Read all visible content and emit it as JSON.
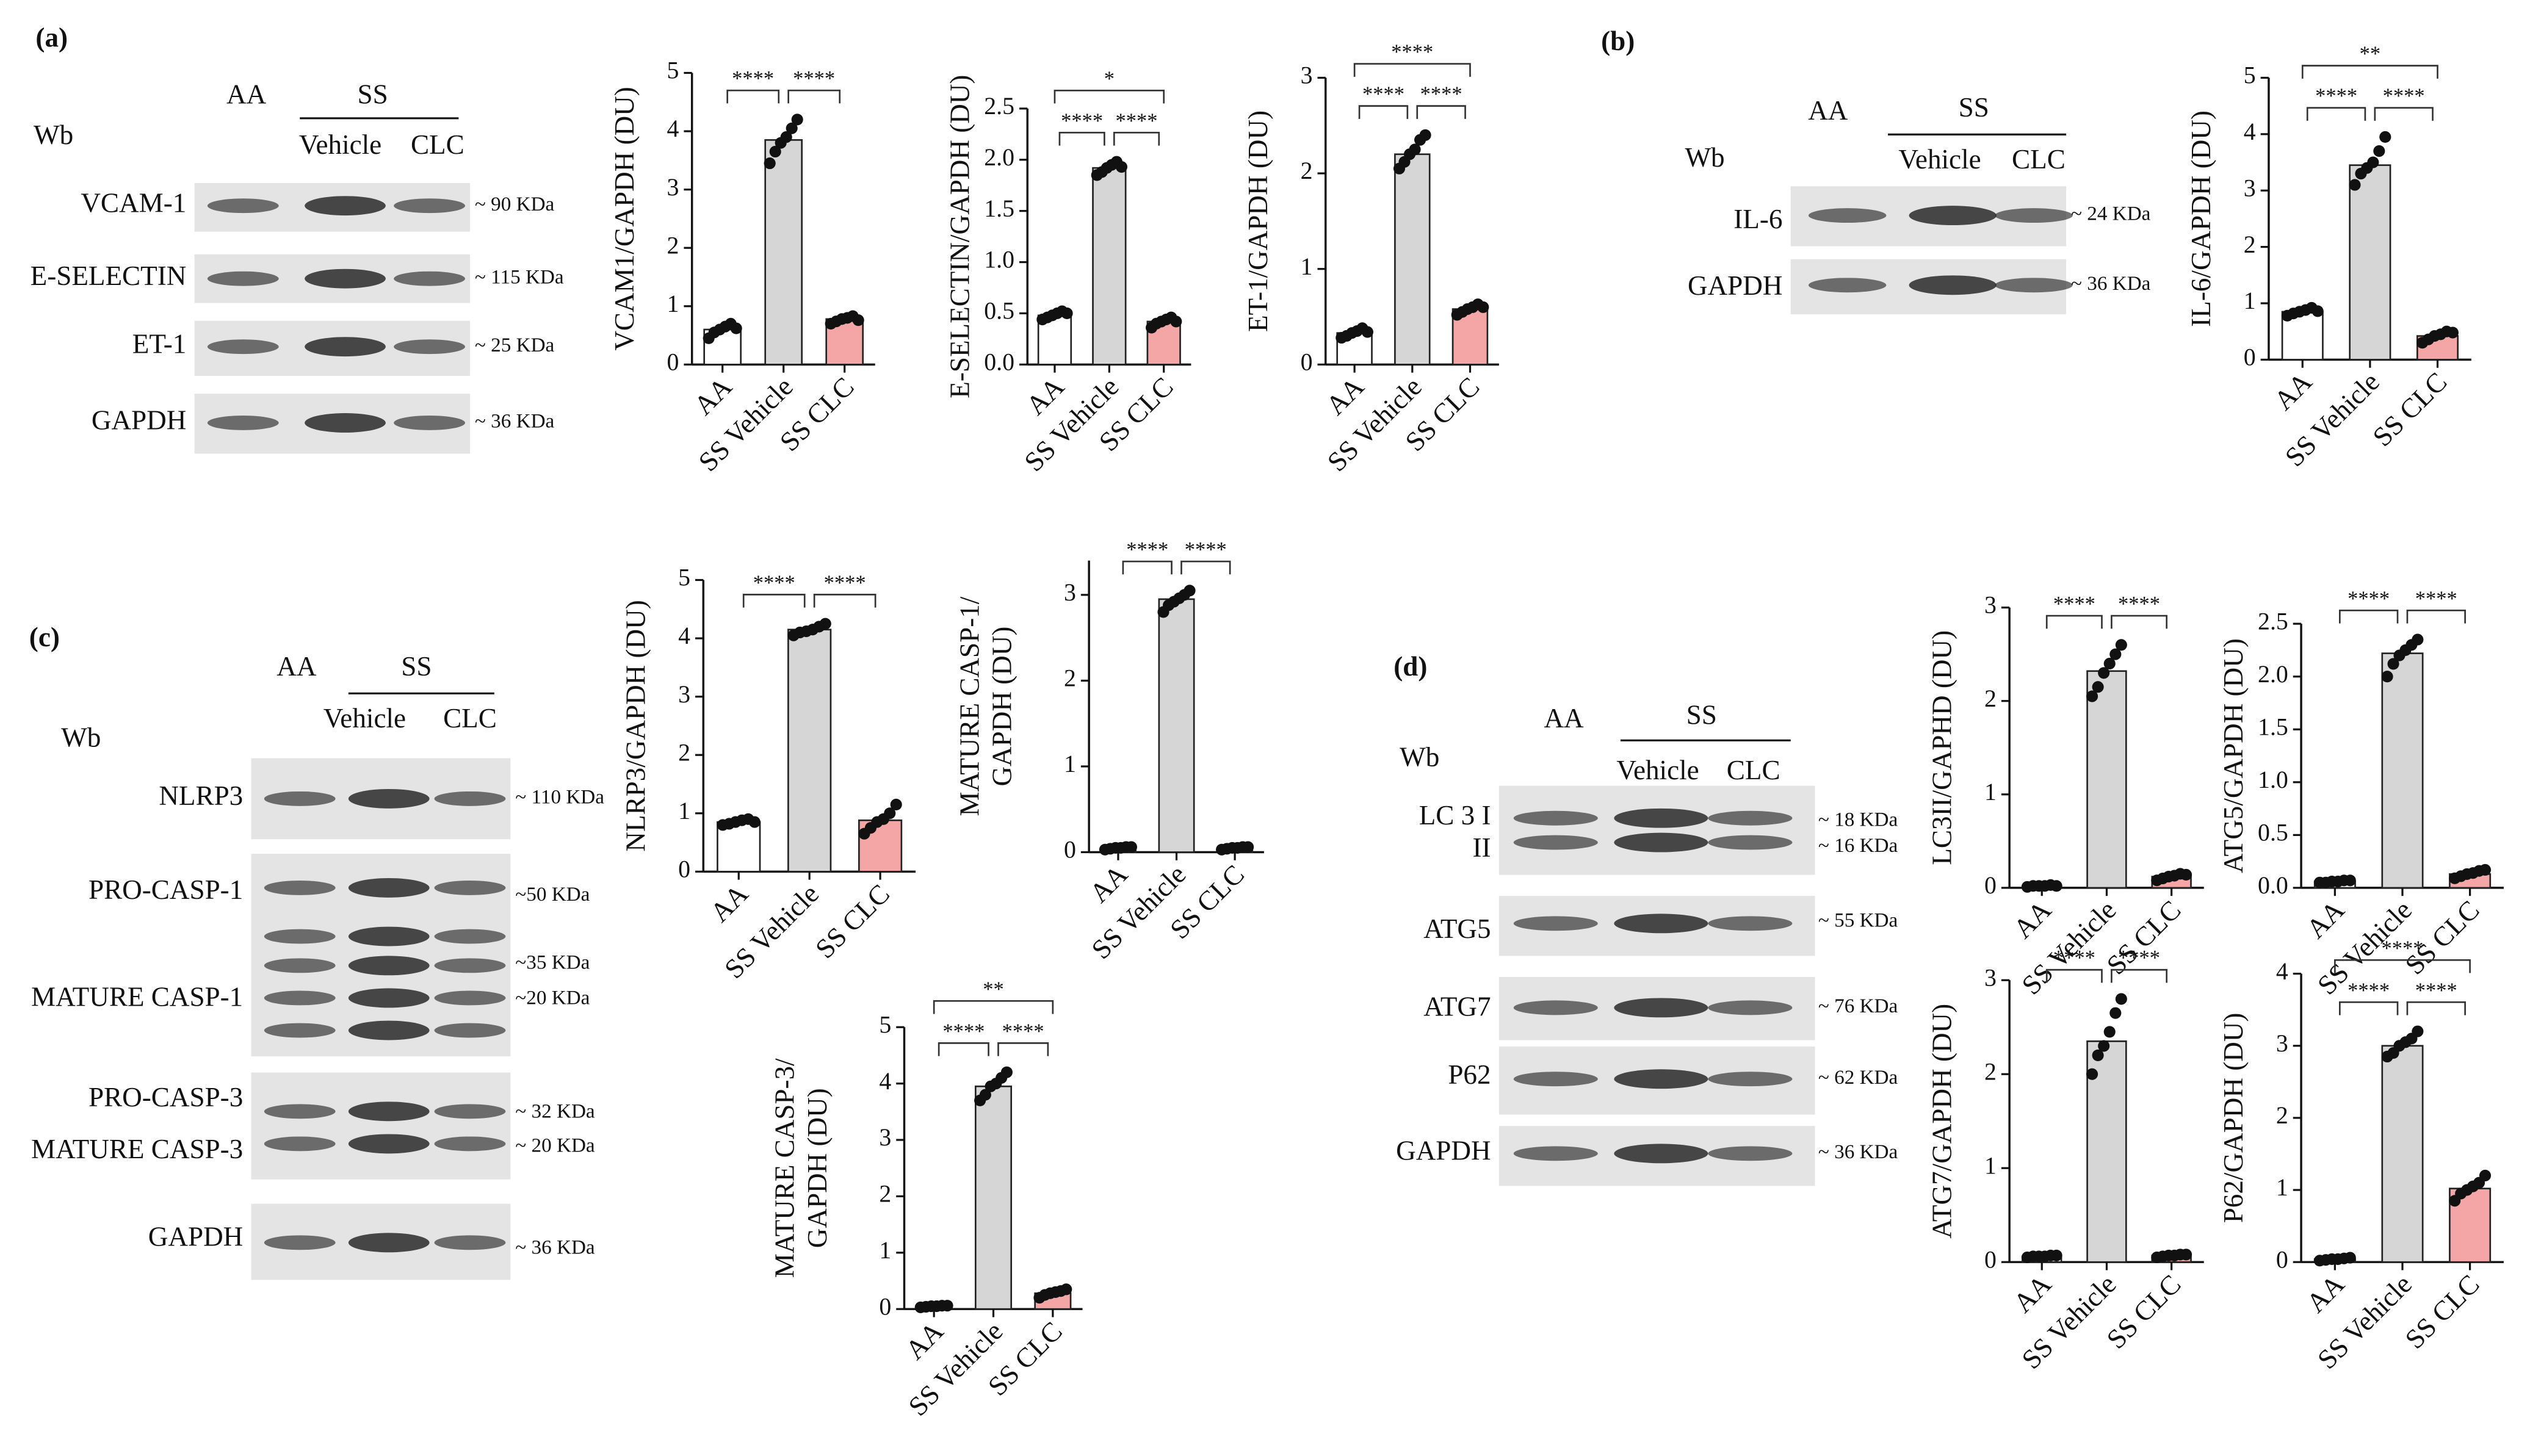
{
  "panels": [
    "(a)",
    "(b)",
    "(c)",
    "(d)"
  ],
  "blots": [
    {
      "wb": "Wb",
      "groups": [
        "AA",
        "SS"
      ],
      "subgroups": [
        "Vehicle",
        "CLC"
      ],
      "labels": [
        "VCAM-1",
        "E-SELECTIN",
        "ET-1",
        "GAPDH"
      ],
      "kda": [
        "~ 90 KDa",
        "~ 115 KDa",
        "~ 25 KDa",
        "~ 36 KDa"
      ]
    },
    {
      "wb": "Wb",
      "groups": [
        "AA",
        "SS"
      ],
      "subgroups": [
        "Vehicle",
        "CLC"
      ],
      "labels": [
        "IL-6",
        "GAPDH"
      ],
      "kda": [
        "~ 24 KDa",
        "~ 36 KDa"
      ]
    },
    {
      "wb": "Wb",
      "groups": [
        "AA",
        "SS"
      ],
      "subgroups": [
        "Vehicle",
        "CLC"
      ],
      "labels": [
        "NLRP3",
        "PRO-CASP-1",
        "MATURE CASP-1",
        "PRO-CASP-3",
        "MATURE CASP-3",
        "GAPDH"
      ],
      "kda": [
        "~ 110 KDa",
        "~50 KDa",
        "~35 KDa",
        "~20 KDa",
        "~ 32 KDa",
        "~ 20 KDa",
        "~ 36 KDa"
      ]
    },
    {
      "wb": "Wb",
      "groups": [
        "AA",
        "SS"
      ],
      "subgroups": [
        "Vehicle",
        "CLC"
      ],
      "labels": [
        "LC 3 I",
        "II",
        "ATG5",
        "ATG7",
        "P62",
        "GAPDH"
      ],
      "kda": [
        "~ 18 KDa",
        "~ 16 KDa",
        "~ 55 KDa",
        "~ 76 KDa",
        "~ 62 KDa",
        "~ 36 KDa"
      ]
    }
  ],
  "chart_data": [
    {
      "type": "bar",
      "ylabel": "VCAM1/GAPDH (DU)",
      "categories": [
        "AA",
        "SS Vehicle",
        "SS CLC"
      ],
      "values": [
        0.6,
        3.85,
        0.78
      ],
      "colors": [
        "#ffffff",
        "#d6d6d6",
        "#f4a6a6"
      ],
      "points": [
        [
          0.45,
          0.55,
          0.6,
          0.65,
          0.7,
          0.62
        ],
        [
          3.45,
          3.65,
          3.8,
          3.9,
          4.05,
          4.2
        ],
        [
          0.7,
          0.74,
          0.78,
          0.8,
          0.83,
          0.76
        ]
      ],
      "ylim": [
        0,
        5
      ],
      "yticks": [
        0,
        1,
        2,
        3,
        4,
        5
      ],
      "significance": [
        {
          "pair": [
            0,
            1
          ],
          "label": "****"
        },
        {
          "pair": [
            1,
            2
          ],
          "label": "****"
        }
      ]
    },
    {
      "type": "bar",
      "ylabel": "E-SELECTIN/GAPDH (DU)",
      "categories": [
        "AA",
        "SS Vehicle",
        "SS CLC"
      ],
      "values": [
        0.48,
        1.92,
        0.42
      ],
      "colors": [
        "#ffffff",
        "#d6d6d6",
        "#f4a6a6"
      ],
      "points": [
        [
          0.44,
          0.46,
          0.48,
          0.5,
          0.52,
          0.5
        ],
        [
          1.85,
          1.88,
          1.92,
          1.95,
          1.98,
          1.93
        ],
        [
          0.36,
          0.4,
          0.42,
          0.44,
          0.46,
          0.42
        ]
      ],
      "ylim": [
        0,
        2.5
      ],
      "yticks": [
        {
          "value": 0,
          "label": "0.0"
        },
        0.5,
        {
          "value": 1,
          "label": "1.0"
        },
        1.5,
        {
          "value": 2,
          "label": "2.0"
        },
        2.5
      ],
      "significance": [
        {
          "pair": [
            0,
            1
          ],
          "label": "****"
        },
        {
          "pair": [
            1,
            2
          ],
          "label": "****"
        },
        {
          "pair": [
            0,
            2
          ],
          "label": "*"
        }
      ]
    },
    {
      "type": "bar",
      "ylabel": "ET-1/GAPDH (DU)",
      "categories": [
        "AA",
        "SS Vehicle",
        "SS CLC"
      ],
      "values": [
        0.33,
        2.2,
        0.58
      ],
      "colors": [
        "#ffffff",
        "#d6d6d6",
        "#f4a6a6"
      ],
      "points": [
        [
          0.28,
          0.3,
          0.33,
          0.35,
          0.38,
          0.34
        ],
        [
          2.05,
          2.12,
          2.2,
          2.25,
          2.35,
          2.4
        ],
        [
          0.52,
          0.55,
          0.58,
          0.6,
          0.63,
          0.6
        ]
      ],
      "ylim": [
        0,
        3
      ],
      "yticks": [
        0,
        1,
        2,
        3
      ],
      "significance": [
        {
          "pair": [
            0,
            1
          ],
          "label": "****"
        },
        {
          "pair": [
            1,
            2
          ],
          "label": "****"
        },
        {
          "pair": [
            0,
            2
          ],
          "label": "****"
        }
      ]
    },
    {
      "type": "bar",
      "ylabel": "IL-6/GAPDH  (DU)",
      "categories": [
        "AA",
        "SS Vehicle",
        "SS CLC"
      ],
      "values": [
        0.85,
        3.45,
        0.42
      ],
      "colors": [
        "#ffffff",
        "#d6d6d6",
        "#f4a6a6"
      ],
      "points": [
        [
          0.78,
          0.82,
          0.85,
          0.88,
          0.92,
          0.86
        ],
        [
          3.1,
          3.3,
          3.4,
          3.5,
          3.7,
          3.95
        ],
        [
          0.3,
          0.36,
          0.42,
          0.45,
          0.5,
          0.48
        ]
      ],
      "ylim": [
        0,
        5
      ],
      "yticks": [
        0,
        1,
        2,
        3,
        4,
        5
      ],
      "significance": [
        {
          "pair": [
            0,
            1
          ],
          "label": "****"
        },
        {
          "pair": [
            1,
            2
          ],
          "label": "****"
        },
        {
          "pair": [
            0,
            2
          ],
          "label": "**"
        }
      ]
    },
    {
      "type": "bar",
      "ylabel": "NLRP3/GAPDH (DU)",
      "categories": [
        "AA",
        "SS Vehicle",
        "SS CLC"
      ],
      "values": [
        0.85,
        4.15,
        0.88
      ],
      "colors": [
        "#ffffff",
        "#d6d6d6",
        "#f4a6a6"
      ],
      "points": [
        [
          0.8,
          0.82,
          0.85,
          0.88,
          0.9,
          0.85
        ],
        [
          4.05,
          4.1,
          4.12,
          4.15,
          4.2,
          4.25
        ],
        [
          0.65,
          0.75,
          0.85,
          0.9,
          1.0,
          1.15
        ]
      ],
      "ylim": [
        0,
        5
      ],
      "yticks": [
        0,
        1,
        2,
        3,
        4,
        5
      ],
      "significance": [
        {
          "pair": [
            0,
            1
          ],
          "label": "****"
        },
        {
          "pair": [
            1,
            2
          ],
          "label": "****"
        }
      ]
    },
    {
      "type": "bar",
      "ylabel": [
        "MATURE CASP-1/",
        "GAPDH  (DU)"
      ],
      "categories": [
        "AA",
        "SS Vehicle",
        "SS CLC"
      ],
      "values": [
        0.05,
        2.95,
        0.05
      ],
      "colors": [
        "#ffffff",
        "#d6d6d6",
        "#f4a6a6"
      ],
      "points": [
        [
          0.03,
          0.04,
          0.05,
          0.05,
          0.06,
          0.06
        ],
        [
          2.8,
          2.88,
          2.92,
          2.96,
          3.0,
          3.05
        ],
        [
          0.03,
          0.04,
          0.05,
          0.05,
          0.06,
          0.06
        ]
      ],
      "ylim": [
        0,
        3.4
      ],
      "yticks": [
        0,
        1,
        2,
        3
      ],
      "significance": [
        {
          "pair": [
            0,
            1
          ],
          "label": "****"
        },
        {
          "pair": [
            1,
            2
          ],
          "label": "****"
        }
      ]
    },
    {
      "type": "bar",
      "ylabel": [
        "MATURE CASP-3/",
        "GAPDH (DU)"
      ],
      "categories": [
        "AA",
        "SS Vehicle",
        "SS CLC"
      ],
      "values": [
        0.05,
        3.95,
        0.28
      ],
      "colors": [
        "#ffffff",
        "#d6d6d6",
        "#f4a6a6"
      ],
      "points": [
        [
          0.03,
          0.04,
          0.05,
          0.05,
          0.06,
          0.06
        ],
        [
          3.7,
          3.8,
          3.95,
          4.0,
          4.1,
          4.2
        ],
        [
          0.2,
          0.25,
          0.28,
          0.3,
          0.32,
          0.35
        ]
      ],
      "ylim": [
        0,
        5
      ],
      "yticks": [
        0,
        1,
        2,
        3,
        4,
        5
      ],
      "significance": [
        {
          "pair": [
            0,
            1
          ],
          "label": "****"
        },
        {
          "pair": [
            1,
            2
          ],
          "label": "****"
        },
        {
          "pair": [
            0,
            2
          ],
          "label": "**"
        }
      ]
    },
    {
      "type": "bar",
      "ylabel": "LC3II/GAPHD (DU)",
      "categories": [
        "AA",
        "SS Vehicle",
        "SS CLC"
      ],
      "values": [
        0.02,
        2.32,
        0.12
      ],
      "colors": [
        "#ffffff",
        "#d6d6d6",
        "#f4a6a6"
      ],
      "points": [
        [
          0.01,
          0.02,
          0.02,
          0.02,
          0.03,
          0.02
        ],
        [
          2.05,
          2.15,
          2.3,
          2.4,
          2.5,
          2.6
        ],
        [
          0.08,
          0.1,
          0.12,
          0.13,
          0.15,
          0.14
        ]
      ],
      "ylim": [
        0,
        3
      ],
      "yticks": [
        0,
        1,
        2,
        3
      ],
      "significance": [
        {
          "pair": [
            0,
            1
          ],
          "label": "****"
        },
        {
          "pair": [
            1,
            2
          ],
          "label": "****"
        }
      ]
    },
    {
      "type": "bar",
      "ylabel": "ATG5/GAPDH (DU)",
      "categories": [
        "AA",
        "SS Vehicle",
        "SS CLC"
      ],
      "values": [
        0.06,
        2.22,
        0.13
      ],
      "colors": [
        "#ffffff",
        "#d6d6d6",
        "#f4a6a6"
      ],
      "points": [
        [
          0.05,
          0.05,
          0.06,
          0.06,
          0.07,
          0.07
        ],
        [
          2.0,
          2.12,
          2.2,
          2.25,
          2.3,
          2.35
        ],
        [
          0.09,
          0.11,
          0.13,
          0.14,
          0.16,
          0.17
        ]
      ],
      "ylim": [
        0,
        2.5
      ],
      "yticks": [
        {
          "value": 0,
          "label": "0.0"
        },
        0.5,
        {
          "value": 1,
          "label": "1.0"
        },
        1.5,
        {
          "value": 2,
          "label": "2.0"
        },
        2.5
      ],
      "significance": [
        {
          "pair": [
            0,
            1
          ],
          "label": "****"
        },
        {
          "pair": [
            1,
            2
          ],
          "label": "****"
        }
      ]
    },
    {
      "type": "bar",
      "ylabel": "ATG7/GAPDH (DU)",
      "categories": [
        "AA",
        "SS Vehicle",
        "SS CLC"
      ],
      "values": [
        0.06,
        2.35,
        0.07
      ],
      "colors": [
        "#ffffff",
        "#d6d6d6",
        "#f4a6a6"
      ],
      "points": [
        [
          0.05,
          0.06,
          0.06,
          0.06,
          0.07,
          0.07
        ],
        [
          2.0,
          2.2,
          2.3,
          2.45,
          2.65,
          2.8
        ],
        [
          0.05,
          0.06,
          0.07,
          0.07,
          0.08,
          0.08
        ]
      ],
      "ylim": [
        0,
        3
      ],
      "yticks": [
        0,
        1,
        2,
        3
      ],
      "significance": [
        {
          "pair": [
            0,
            1
          ],
          "label": "****"
        },
        {
          "pair": [
            1,
            2
          ],
          "label": "****"
        }
      ]
    },
    {
      "type": "bar",
      "ylabel": "P62/GAPDH (DU)",
      "categories": [
        "AA",
        "SS Vehicle",
        "SS CLC"
      ],
      "values": [
        0.04,
        3.0,
        1.02
      ],
      "colors": [
        "#ffffff",
        "#d6d6d6",
        "#f4a6a6"
      ],
      "points": [
        [
          0.02,
          0.03,
          0.04,
          0.04,
          0.05,
          0.06
        ],
        [
          2.85,
          2.9,
          3.0,
          3.05,
          3.1,
          3.2
        ],
        [
          0.85,
          0.95,
          1.0,
          1.05,
          1.1,
          1.2
        ]
      ],
      "ylim": [
        0,
        4
      ],
      "yticks": [
        0,
        1,
        2,
        3,
        4
      ],
      "significance": [
        {
          "pair": [
            0,
            1
          ],
          "label": "****"
        },
        {
          "pair": [
            1,
            2
          ],
          "label": "****"
        },
        {
          "pair": [
            0,
            2
          ],
          "label": "****"
        }
      ]
    }
  ]
}
